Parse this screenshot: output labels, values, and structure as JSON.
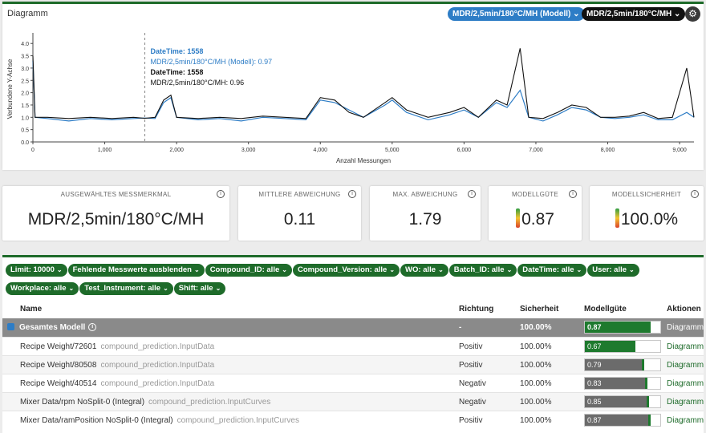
{
  "chart_panel": {
    "title": "Diagramm",
    "series_selector_blue": "MDR/2,5min/180°C/MH (Modell)",
    "series_selector_black": "MDR/2,5min/180°C/MH",
    "settings_icon": "gear-icon"
  },
  "tooltip": {
    "dt_label_1": "DateTime: 1558",
    "model_line": "MDR/2,5min/180°C/MH (Modell): 0.97",
    "dt_label_2": "DateTime: 1558",
    "actual_line": "MDR/2,5min/180°C/MH: 0.96"
  },
  "chart_data": {
    "type": "line",
    "xlabel": "Anzahl Messungen",
    "ylabel": "Verbundene Y-Achse",
    "xlim": [
      0,
      9200
    ],
    "ylim": [
      0,
      4.3
    ],
    "x_ticks": [
      "0",
      "1,000",
      "2,000",
      "3,000",
      "4,000",
      "5,000",
      "6,000",
      "7,000",
      "8,000",
      "9,000"
    ],
    "y_ticks": [
      "0.0",
      "0.5",
      "1.0",
      "1.5",
      "2.0",
      "2.5",
      "3.0",
      "3.5",
      "4.0"
    ],
    "hover_x": 1558,
    "series": [
      {
        "name": "MDR/2,5min/180°C/MH (Modell)",
        "color": "#2e7dc6",
        "points": [
          [
            0,
            3.3
          ],
          [
            30,
            1.0
          ],
          [
            200,
            0.95
          ],
          [
            500,
            0.85
          ],
          [
            800,
            0.95
          ],
          [
            1100,
            0.9
          ],
          [
            1400,
            0.95
          ],
          [
            1558,
            0.97
          ],
          [
            1700,
            0.95
          ],
          [
            1820,
            1.6
          ],
          [
            1920,
            1.8
          ],
          [
            2000,
            1.0
          ],
          [
            2300,
            0.9
          ],
          [
            2600,
            0.95
          ],
          [
            2900,
            0.85
          ],
          [
            3200,
            1.0
          ],
          [
            3500,
            0.95
          ],
          [
            3800,
            0.9
          ],
          [
            4000,
            1.7
          ],
          [
            4200,
            1.6
          ],
          [
            4400,
            1.3
          ],
          [
            4600,
            1.0
          ],
          [
            4900,
            1.5
          ],
          [
            5000,
            1.7
          ],
          [
            5200,
            1.2
          ],
          [
            5500,
            0.9
          ],
          [
            5800,
            1.1
          ],
          [
            6000,
            1.3
          ],
          [
            6200,
            1.0
          ],
          [
            6450,
            1.6
          ],
          [
            6600,
            1.4
          ],
          [
            6780,
            2.1
          ],
          [
            6900,
            1.0
          ],
          [
            7100,
            0.85
          ],
          [
            7300,
            1.1
          ],
          [
            7500,
            1.4
          ],
          [
            7700,
            1.3
          ],
          [
            7900,
            1.0
          ],
          [
            8100,
            0.95
          ],
          [
            8300,
            1.0
          ],
          [
            8500,
            1.1
          ],
          [
            8700,
            0.9
          ],
          [
            8900,
            0.9
          ],
          [
            9100,
            1.2
          ],
          [
            9200,
            1.0
          ]
        ]
      },
      {
        "name": "MDR/2,5min/180°C/MH",
        "color": "#111111",
        "points": [
          [
            0,
            3.5
          ],
          [
            30,
            1.0
          ],
          [
            200,
            1.0
          ],
          [
            500,
            0.95
          ],
          [
            800,
            1.0
          ],
          [
            1100,
            0.95
          ],
          [
            1400,
            1.0
          ],
          [
            1558,
            0.96
          ],
          [
            1700,
            1.0
          ],
          [
            1820,
            1.7
          ],
          [
            1920,
            1.9
          ],
          [
            2000,
            1.0
          ],
          [
            2300,
            0.95
          ],
          [
            2600,
            1.0
          ],
          [
            2900,
            0.95
          ],
          [
            3200,
            1.05
          ],
          [
            3500,
            1.0
          ],
          [
            3800,
            0.95
          ],
          [
            4000,
            1.8
          ],
          [
            4200,
            1.7
          ],
          [
            4400,
            1.2
          ],
          [
            4600,
            1.0
          ],
          [
            4900,
            1.6
          ],
          [
            5000,
            1.8
          ],
          [
            5200,
            1.3
          ],
          [
            5500,
            1.0
          ],
          [
            5800,
            1.2
          ],
          [
            6000,
            1.4
          ],
          [
            6200,
            1.0
          ],
          [
            6450,
            1.7
          ],
          [
            6600,
            1.5
          ],
          [
            6780,
            3.8
          ],
          [
            6900,
            1.0
          ],
          [
            7100,
            0.95
          ],
          [
            7300,
            1.2
          ],
          [
            7500,
            1.5
          ],
          [
            7700,
            1.4
          ],
          [
            7900,
            1.0
          ],
          [
            8100,
            1.0
          ],
          [
            8300,
            1.05
          ],
          [
            8500,
            1.2
          ],
          [
            8700,
            0.95
          ],
          [
            8900,
            1.0
          ],
          [
            9100,
            3.0
          ],
          [
            9200,
            1.0
          ]
        ]
      }
    ]
  },
  "kpis": [
    {
      "label": "AUSGEWÄHLTES MESSMERKMAL",
      "value": "MDR/2,5min/180°C/MH"
    },
    {
      "label": "MITTLERE ABWEICHUNG",
      "value": "0.11"
    },
    {
      "label": "MAX. ABWEICHUNG",
      "value": "1.79"
    },
    {
      "label": "MODELLGÜTE",
      "value": "0.87"
    },
    {
      "label": "MODELLSICHERHEIT",
      "value": "100.0%"
    }
  ],
  "filters": [
    "Limit: 10000",
    "Fehlende Messwerte ausblenden",
    "Compound_ID: alle",
    "Compound_Version: alle",
    "WO: alle",
    "Batch_ID: alle",
    "DateTime: alle",
    "User: alle",
    "Workplace: alle",
    "Test_Instrument: alle",
    "Shift: alle"
  ],
  "table": {
    "headers": {
      "name": "Name",
      "direction": "Richtung",
      "certainty": "Sicherheit",
      "quality": "Modellgüte",
      "actions": "Aktionen"
    },
    "total": {
      "name": "Gesamtes Modell",
      "direction": "-",
      "certainty": "100.00%",
      "quality": "0.87",
      "quality_value": 0.87,
      "action": "Diagramm"
    },
    "rows": [
      {
        "name": "Recipe Weight/72601",
        "source": "compound_prediction.InputData",
        "direction": "Positiv",
        "certainty": "100.00%",
        "quality": "0.67",
        "quality_value": 0.67,
        "fill_color": "#1e7a2e",
        "action": "Diagramm"
      },
      {
        "name": "Recipe Weight/80508",
        "source": "compound_prediction.InputData",
        "direction": "Positiv",
        "certainty": "100.00%",
        "quality": "0.79",
        "quality_value": 0.79,
        "fill_color": "#6b6b6b",
        "accent": "#1e7a2e",
        "action": "Diagramm"
      },
      {
        "name": "Recipe Weight/40514",
        "source": "compound_prediction.InputData",
        "direction": "Negativ",
        "certainty": "100.00%",
        "quality": "0.83",
        "quality_value": 0.83,
        "fill_color": "#6b6b6b",
        "accent": "#1e7a2e",
        "action": "Diagramm"
      },
      {
        "name": "Mixer Data/rpm NoSplit-0 (Integral)",
        "source": "compound_prediction.InputCurves",
        "direction": "Negativ",
        "certainty": "100.00%",
        "quality": "0.85",
        "quality_value": 0.85,
        "fill_color": "#6b6b6b",
        "accent": "#1e7a2e",
        "action": "Diagramm"
      },
      {
        "name": "Mixer Data/ramPosition NoSplit-0 (Integral)",
        "source": "compound_prediction.InputCurves",
        "direction": "Positiv",
        "certainty": "100.00%",
        "quality": "0.87",
        "quality_value": 0.87,
        "fill_color": "#6b6b6b",
        "accent": "#1e7a2e",
        "action": "Diagramm"
      }
    ]
  }
}
